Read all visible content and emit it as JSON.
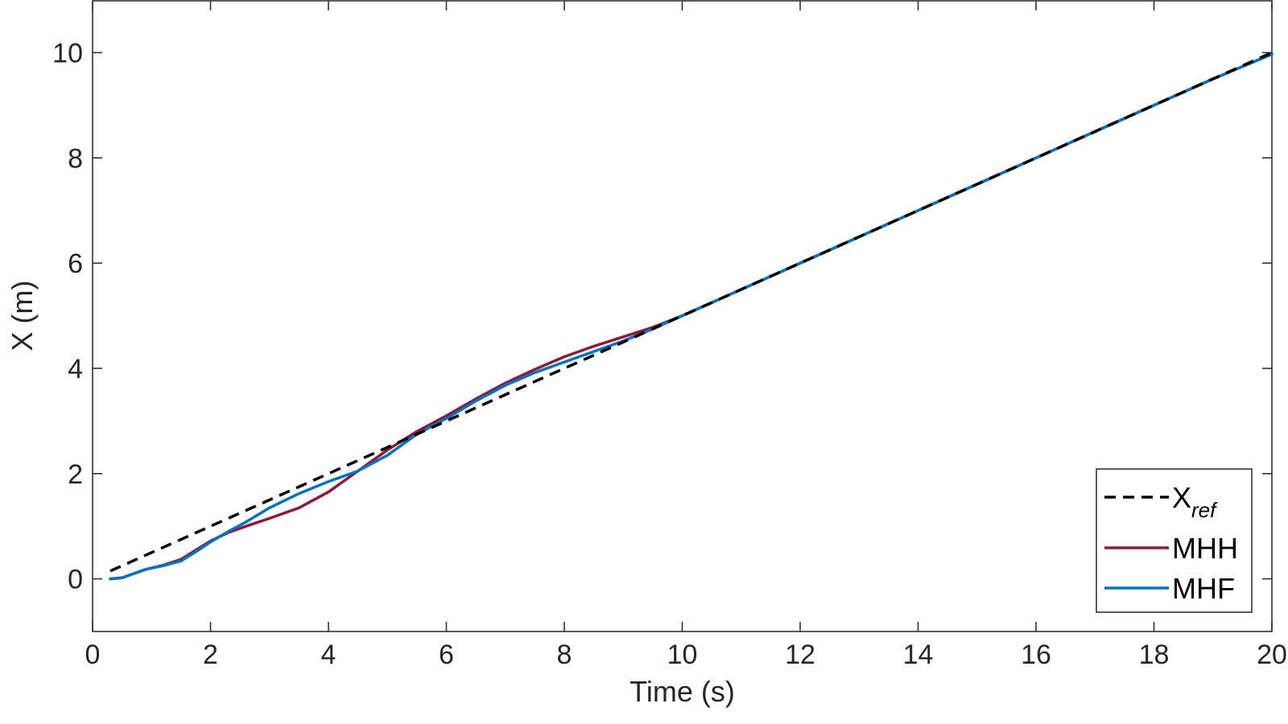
{
  "chart_data": {
    "type": "line",
    "title": "",
    "xlabel": "Time (s)",
    "ylabel": "X (m)",
    "xlim": [
      0,
      20
    ],
    "ylim": [
      -1,
      11
    ],
    "xticks": [
      0,
      2,
      4,
      6,
      8,
      10,
      12,
      14,
      16,
      18,
      20
    ],
    "yticks": [
      0,
      2,
      4,
      6,
      8,
      10
    ],
    "grid": false,
    "legend_position": "bottom-right",
    "series": [
      {
        "name": "X",
        "name_subscript": "ref",
        "style": "dashed",
        "color": "#000000",
        "x": [
          0.3,
          20
        ],
        "y": [
          0.15,
          10
        ]
      },
      {
        "name": "MHH",
        "style": "solid",
        "color": "#8B1A3A",
        "x": [
          0.3,
          0.5,
          0.7,
          0.9,
          1.2,
          1.5,
          1.8,
          2.0,
          2.3,
          2.6,
          3.0,
          3.5,
          4.0,
          4.5,
          5.0,
          5.5,
          6.0,
          6.5,
          7.0,
          7.5,
          8.0,
          8.5,
          9.0,
          9.5,
          10.0,
          11,
          12,
          13,
          14,
          15,
          16,
          17,
          18,
          19,
          20
        ],
        "y": [
          0.0,
          0.02,
          0.1,
          0.18,
          0.26,
          0.37,
          0.58,
          0.72,
          0.88,
          1.0,
          1.15,
          1.35,
          1.65,
          2.05,
          2.45,
          2.8,
          3.1,
          3.42,
          3.72,
          3.98,
          4.22,
          4.42,
          4.6,
          4.78,
          5.0,
          5.5,
          6.0,
          6.5,
          7.0,
          7.5,
          8.0,
          8.5,
          9.0,
          9.5,
          9.97
        ]
      },
      {
        "name": "MHF",
        "style": "solid",
        "color": "#0072BD",
        "x": [
          0.3,
          0.5,
          0.7,
          0.9,
          1.2,
          1.5,
          1.8,
          2.0,
          2.3,
          2.6,
          3.0,
          3.5,
          4.0,
          4.5,
          5.0,
          5.5,
          6.0,
          6.5,
          7.0,
          7.5,
          8.0,
          8.5,
          9.0,
          9.5,
          10.0,
          11,
          12,
          13,
          14,
          15,
          16,
          17,
          18,
          19,
          20
        ],
        "y": [
          0.0,
          0.02,
          0.1,
          0.18,
          0.25,
          0.34,
          0.55,
          0.7,
          0.9,
          1.08,
          1.35,
          1.62,
          1.85,
          2.05,
          2.35,
          2.75,
          3.05,
          3.38,
          3.68,
          3.92,
          4.12,
          4.32,
          4.52,
          4.75,
          5.0,
          5.5,
          6.0,
          6.5,
          7.0,
          7.5,
          8.0,
          8.5,
          9.0,
          9.5,
          9.97
        ]
      }
    ]
  }
}
